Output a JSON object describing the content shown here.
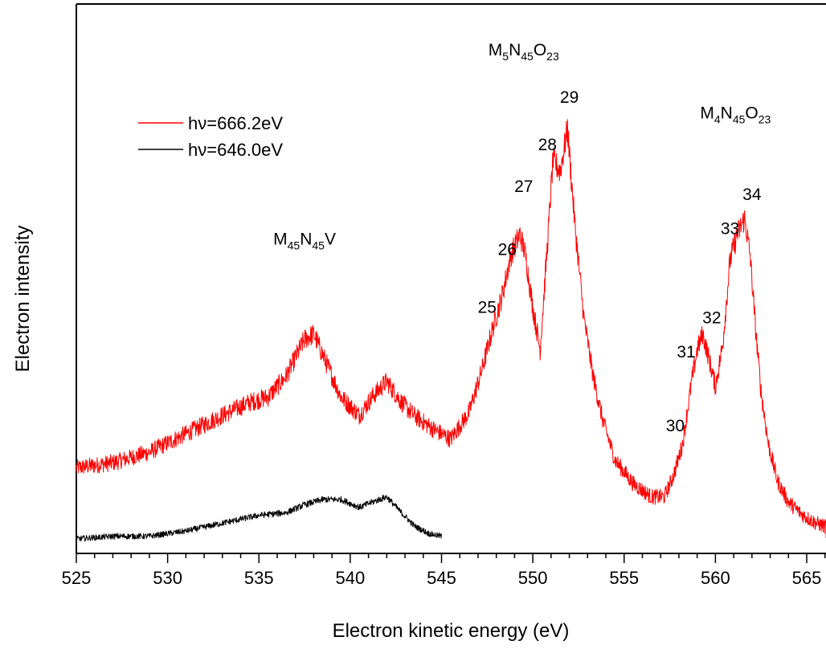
{
  "chart_data": {
    "type": "line",
    "xlabel": "Electron kinetic energy (eV)",
    "ylabel": "Electron intensity",
    "xlim": [
      525,
      567
    ],
    "ylim": [
      0,
      1
    ],
    "xticks": [
      "525",
      "530",
      "535",
      "540",
      "545",
      "550",
      "555",
      "560",
      "565"
    ],
    "yticks_shown": false,
    "grid": false,
    "legend_position": "top-left",
    "series": [
      {
        "name": "hν=666.2eV",
        "color": "#ff0000",
        "x": [
          525,
          527,
          529,
          531,
          533,
          534.5,
          535.5,
          536.5,
          537.5,
          538,
          538.5,
          539.5,
          540.5,
          541.2,
          542,
          542.8,
          543.5,
          544.5,
          545.5,
          546.5,
          547.2,
          547.8,
          548.3,
          548.8,
          549.3,
          549.6,
          550,
          550.4,
          550.8,
          551.1,
          551.5,
          551.9,
          552.3,
          552.8,
          553.3,
          553.8,
          554.5,
          555.5,
          556.5,
          557.2,
          557.7,
          558.2,
          558.7,
          559,
          559.3,
          559.6,
          560,
          560.4,
          560.8,
          561.2,
          561.6,
          561.9,
          562.2,
          562.5,
          562.9,
          563.4,
          564,
          564.8,
          565.5,
          566.3,
          567
        ],
        "values": [
          0.155,
          0.165,
          0.185,
          0.22,
          0.255,
          0.28,
          0.29,
          0.33,
          0.4,
          0.41,
          0.37,
          0.29,
          0.255,
          0.29,
          0.32,
          0.28,
          0.255,
          0.23,
          0.21,
          0.26,
          0.34,
          0.42,
          0.48,
          0.56,
          0.6,
          0.56,
          0.46,
          0.38,
          0.58,
          0.74,
          0.72,
          0.8,
          0.62,
          0.44,
          0.33,
          0.25,
          0.17,
          0.125,
          0.1,
          0.1,
          0.14,
          0.2,
          0.32,
          0.38,
          0.41,
          0.37,
          0.31,
          0.39,
          0.55,
          0.6,
          0.63,
          0.56,
          0.42,
          0.3,
          0.2,
          0.13,
          0.09,
          0.065,
          0.05,
          0.04,
          0.035
        ]
      },
      {
        "name": "hν=646.0eV",
        "color": "#000000",
        "x": [
          525,
          527,
          529,
          531,
          533,
          535,
          536.5,
          537.5,
          538.5,
          539.5,
          540.5,
          541.2,
          542,
          542.8,
          543.5,
          544.3,
          545
        ],
        "values": [
          0.02,
          0.025,
          0.025,
          0.035,
          0.05,
          0.065,
          0.07,
          0.085,
          0.095,
          0.095,
          0.08,
          0.09,
          0.1,
          0.07,
          0.045,
          0.03,
          0.025
        ]
      }
    ],
    "annotations": {
      "groups": [
        {
          "main": "M",
          "sub1": "45",
          "mid": "N",
          "sub2": "45",
          "tail": "V",
          "sub3": "",
          "x": 537.5,
          "y": 0.58
        },
        {
          "main": "M",
          "sub1": "5",
          "mid": "N",
          "sub2": "45",
          "tail": "O",
          "sub3": "23",
          "x": 549.5,
          "y": 0.94
        },
        {
          "main": "M",
          "sub1": "4",
          "mid": "N",
          "sub2": "45",
          "tail": "O",
          "sub3": "23",
          "x": 561.1,
          "y": 0.82
        }
      ],
      "peaks": [
        {
          "label": "25",
          "x": 547.5,
          "y": 0.45
        },
        {
          "label": "26",
          "x": 548.6,
          "y": 0.56
        },
        {
          "label": "27",
          "x": 549.5,
          "y": 0.68
        },
        {
          "label": "28",
          "x": 550.8,
          "y": 0.76
        },
        {
          "label": "29",
          "x": 552,
          "y": 0.85
        },
        {
          "label": "30",
          "x": 557.8,
          "y": 0.225
        },
        {
          "label": "31",
          "x": 558.4,
          "y": 0.365
        },
        {
          "label": "32",
          "x": 559.8,
          "y": 0.43
        },
        {
          "label": "33",
          "x": 560.8,
          "y": 0.6
        },
        {
          "label": "34",
          "x": 562,
          "y": 0.665
        }
      ]
    }
  }
}
